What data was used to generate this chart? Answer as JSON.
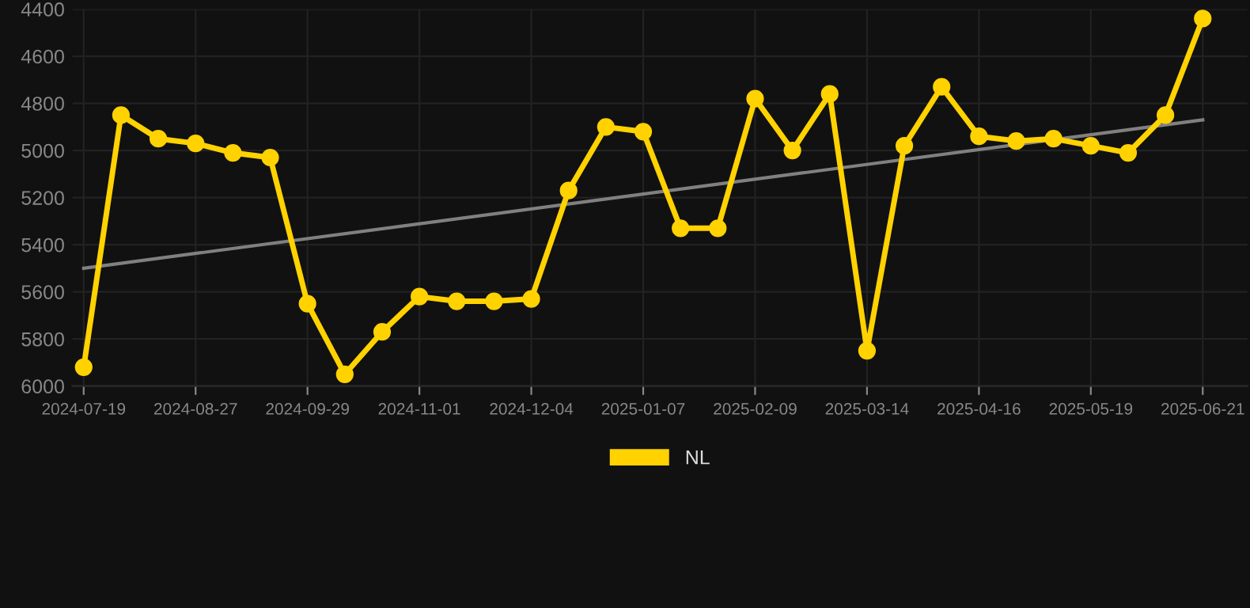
{
  "chart_data": {
    "type": "line",
    "categories": [
      "2024-07-19",
      null,
      null,
      "2024-08-27",
      null,
      null,
      "2024-09-29",
      null,
      null,
      "2024-11-01",
      null,
      null,
      "2024-12-04",
      null,
      null,
      "2025-01-07",
      null,
      null,
      "2025-02-09",
      null,
      null,
      "2025-03-14",
      null,
      null,
      "2025-04-16",
      null,
      null,
      "2025-05-19",
      null,
      null,
      "2025-06-21"
    ],
    "series": [
      {
        "name": "NL",
        "color": "#ffd200",
        "marker": "circle",
        "values": [
          5920,
          4850,
          4950,
          4970,
          5010,
          5030,
          5650,
          5950,
          5770,
          5620,
          5640,
          5640,
          5630,
          5170,
          4900,
          4920,
          5330,
          5330,
          4780,
          5000,
          4760,
          5850,
          4980,
          4730,
          4940,
          4960,
          4950,
          4980,
          5010,
          4850,
          4440
        ]
      },
      {
        "type": "line",
        "color": "#808080",
        "marker": "none",
        "values": [
          5500,
          null,
          null,
          null,
          null,
          null,
          null,
          null,
          null,
          null,
          null,
          null,
          null,
          null,
          null,
          null,
          null,
          null,
          null,
          null,
          null,
          null,
          null,
          null,
          null,
          null,
          null,
          null,
          null,
          null,
          4870
        ]
      }
    ],
    "ylim": [
      6000,
      4400
    ],
    "yticks": [
      4400,
      4600,
      4800,
      5000,
      5200,
      5400,
      5600,
      5800,
      6000
    ],
    "grid": true,
    "legend": "bottom",
    "line_style": "solid"
  }
}
